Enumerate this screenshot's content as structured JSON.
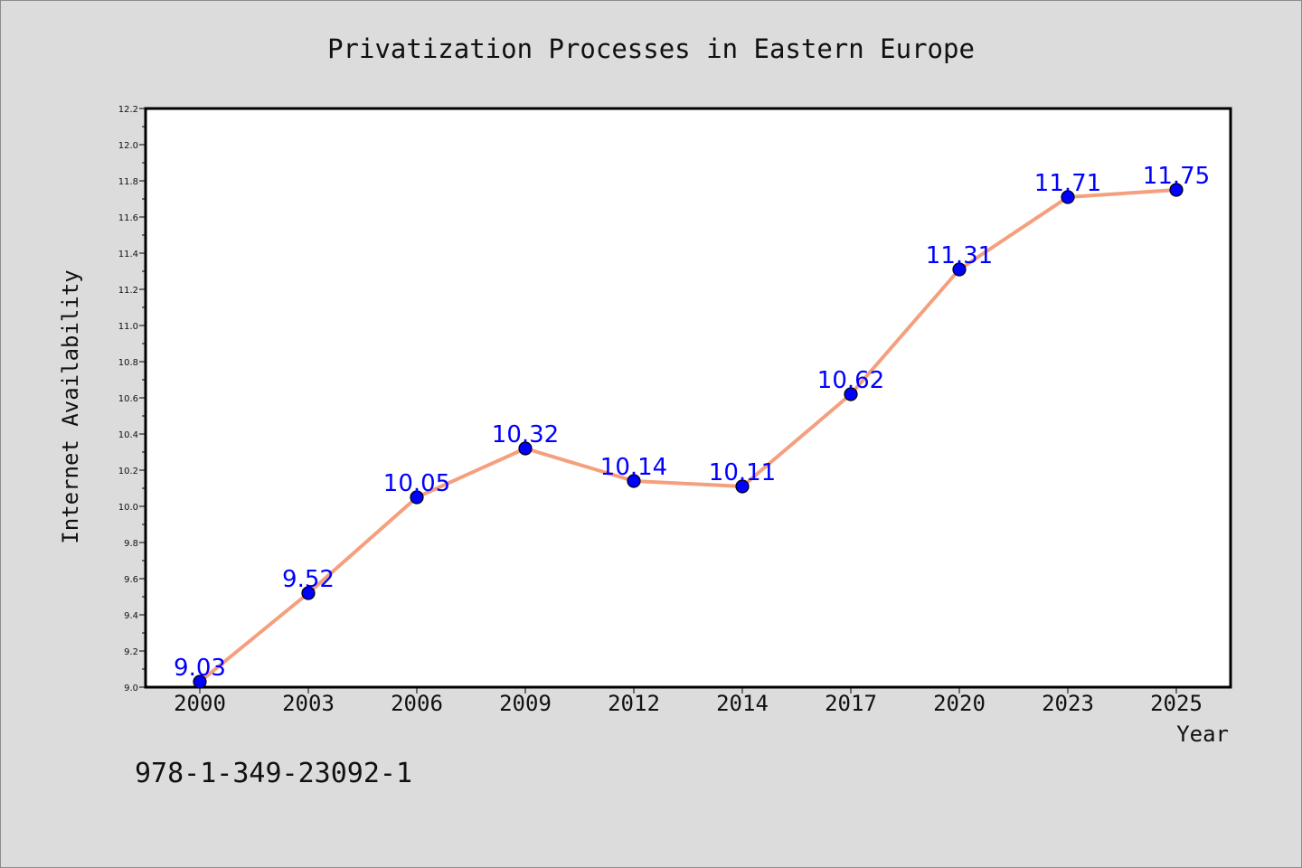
{
  "chart_data": {
    "type": "line",
    "title": "Privatization Processes in Eastern Europe",
    "xlabel": "Year",
    "ylabel": "Internet Availability",
    "categories": [
      "2000",
      "2003",
      "2006",
      "2009",
      "2012",
      "2014",
      "2017",
      "2020",
      "2023",
      "2025"
    ],
    "series": [
      {
        "values": [
          9.03,
          9.52,
          10.05,
          10.32,
          10.14,
          10.11,
          10.62,
          11.31,
          11.71,
          11.75
        ],
        "data_labels": [
          "9.03",
          "9.52",
          "10.05",
          "10.32",
          "10.14",
          "10.11",
          "10.62",
          "11.31",
          "11.71",
          "11.75"
        ],
        "line_color": "#f4a07e",
        "marker_color": "#0000ff"
      }
    ],
    "ylim": [
      9.0,
      12.2
    ],
    "y_ticks": [
      "9.0",
      "9.2",
      "9.4",
      "9.6",
      "9.8",
      "10.0",
      "10.2",
      "10.4",
      "10.6",
      "10.8",
      "11.0",
      "11.2",
      "11.4",
      "11.6",
      "11.8",
      "12.0",
      "12.2"
    ],
    "grid": false,
    "legend": "none"
  },
  "footer": {
    "isbn": "978-1-349-23092-1"
  },
  "colors": {
    "background": "#dcdcdc",
    "plot_background": "#ffffff",
    "axis": "#000000",
    "data_label": "#0000ff"
  }
}
